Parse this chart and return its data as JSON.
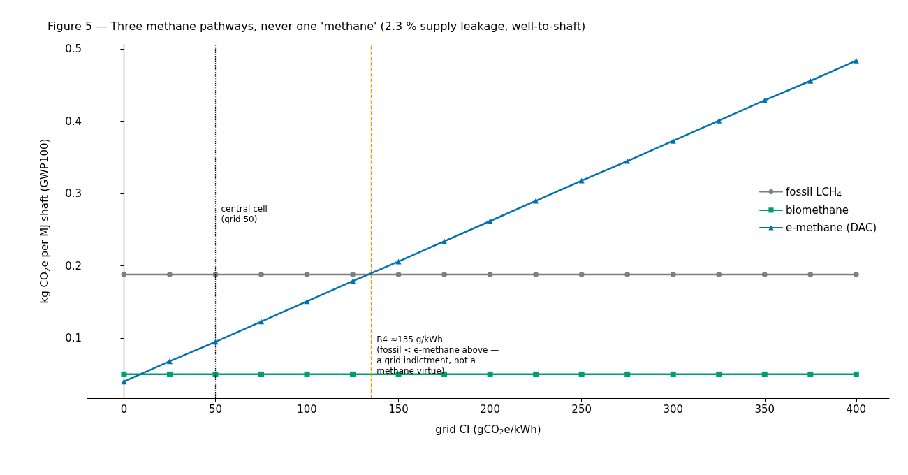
{
  "chart_data": {
    "type": "line",
    "title": "Figure 5 — Three methane pathways, never one 'methane' (2.3 % supply leakage, well-to-shaft)",
    "xlabel": "grid CI (gCO$_{2}$e/kWh)",
    "ylabel": "kg CO$_{2}$e per MJ shaft (GWP100)",
    "x": [
      0,
      25,
      50,
      75,
      100,
      125,
      150,
      175,
      200,
      225,
      250,
      275,
      300,
      325,
      350,
      375,
      400
    ],
    "series": [
      {
        "name": "fossil LCH$_{4}$",
        "color": "#7f7f7f",
        "marker": "circle",
        "values": [
          0.188,
          0.188,
          0.188,
          0.188,
          0.188,
          0.188,
          0.188,
          0.188,
          0.188,
          0.188,
          0.188,
          0.188,
          0.188,
          0.188,
          0.188,
          0.188,
          0.188
        ]
      },
      {
        "name": "biomethane",
        "color": "#009e73",
        "marker": "square",
        "values": [
          0.05,
          0.05,
          0.05,
          0.05,
          0.05,
          0.05,
          0.05,
          0.05,
          0.05,
          0.05,
          0.05,
          0.05,
          0.05,
          0.05,
          0.05,
          0.05,
          0.05
        ]
      },
      {
        "name": "e-methane (DAC)",
        "color": "#0072b2",
        "marker": "triangle",
        "values": [
          0.04,
          0.068,
          0.095,
          0.123,
          0.151,
          0.179,
          0.206,
          0.234,
          0.262,
          0.29,
          0.318,
          0.345,
          0.373,
          0.401,
          0.429,
          0.456,
          0.484
        ]
      }
    ],
    "xlim": [
      -20,
      418
    ],
    "xticks": [
      0,
      50,
      100,
      150,
      200,
      250,
      300,
      350,
      400
    ],
    "ylim": [
      0.017,
      0.507
    ],
    "yticks": [
      0.1,
      0.2,
      0.3,
      0.4,
      0.5
    ],
    "ref_lines": [
      {
        "axis": "x",
        "value": 50,
        "label": "central cell\n(grid 50)",
        "color": "#000000",
        "line_style": "dotted"
      },
      {
        "axis": "x",
        "value": 135,
        "label": "B4 ≈135 g/kWh\n(fossil < e-methane above —\na grid indictment, not a\nmethane virtue)",
        "color": "#e69f00",
        "line_style": "dashed"
      }
    ],
    "legend": "right",
    "grid": false,
    "line_style": "solid"
  }
}
